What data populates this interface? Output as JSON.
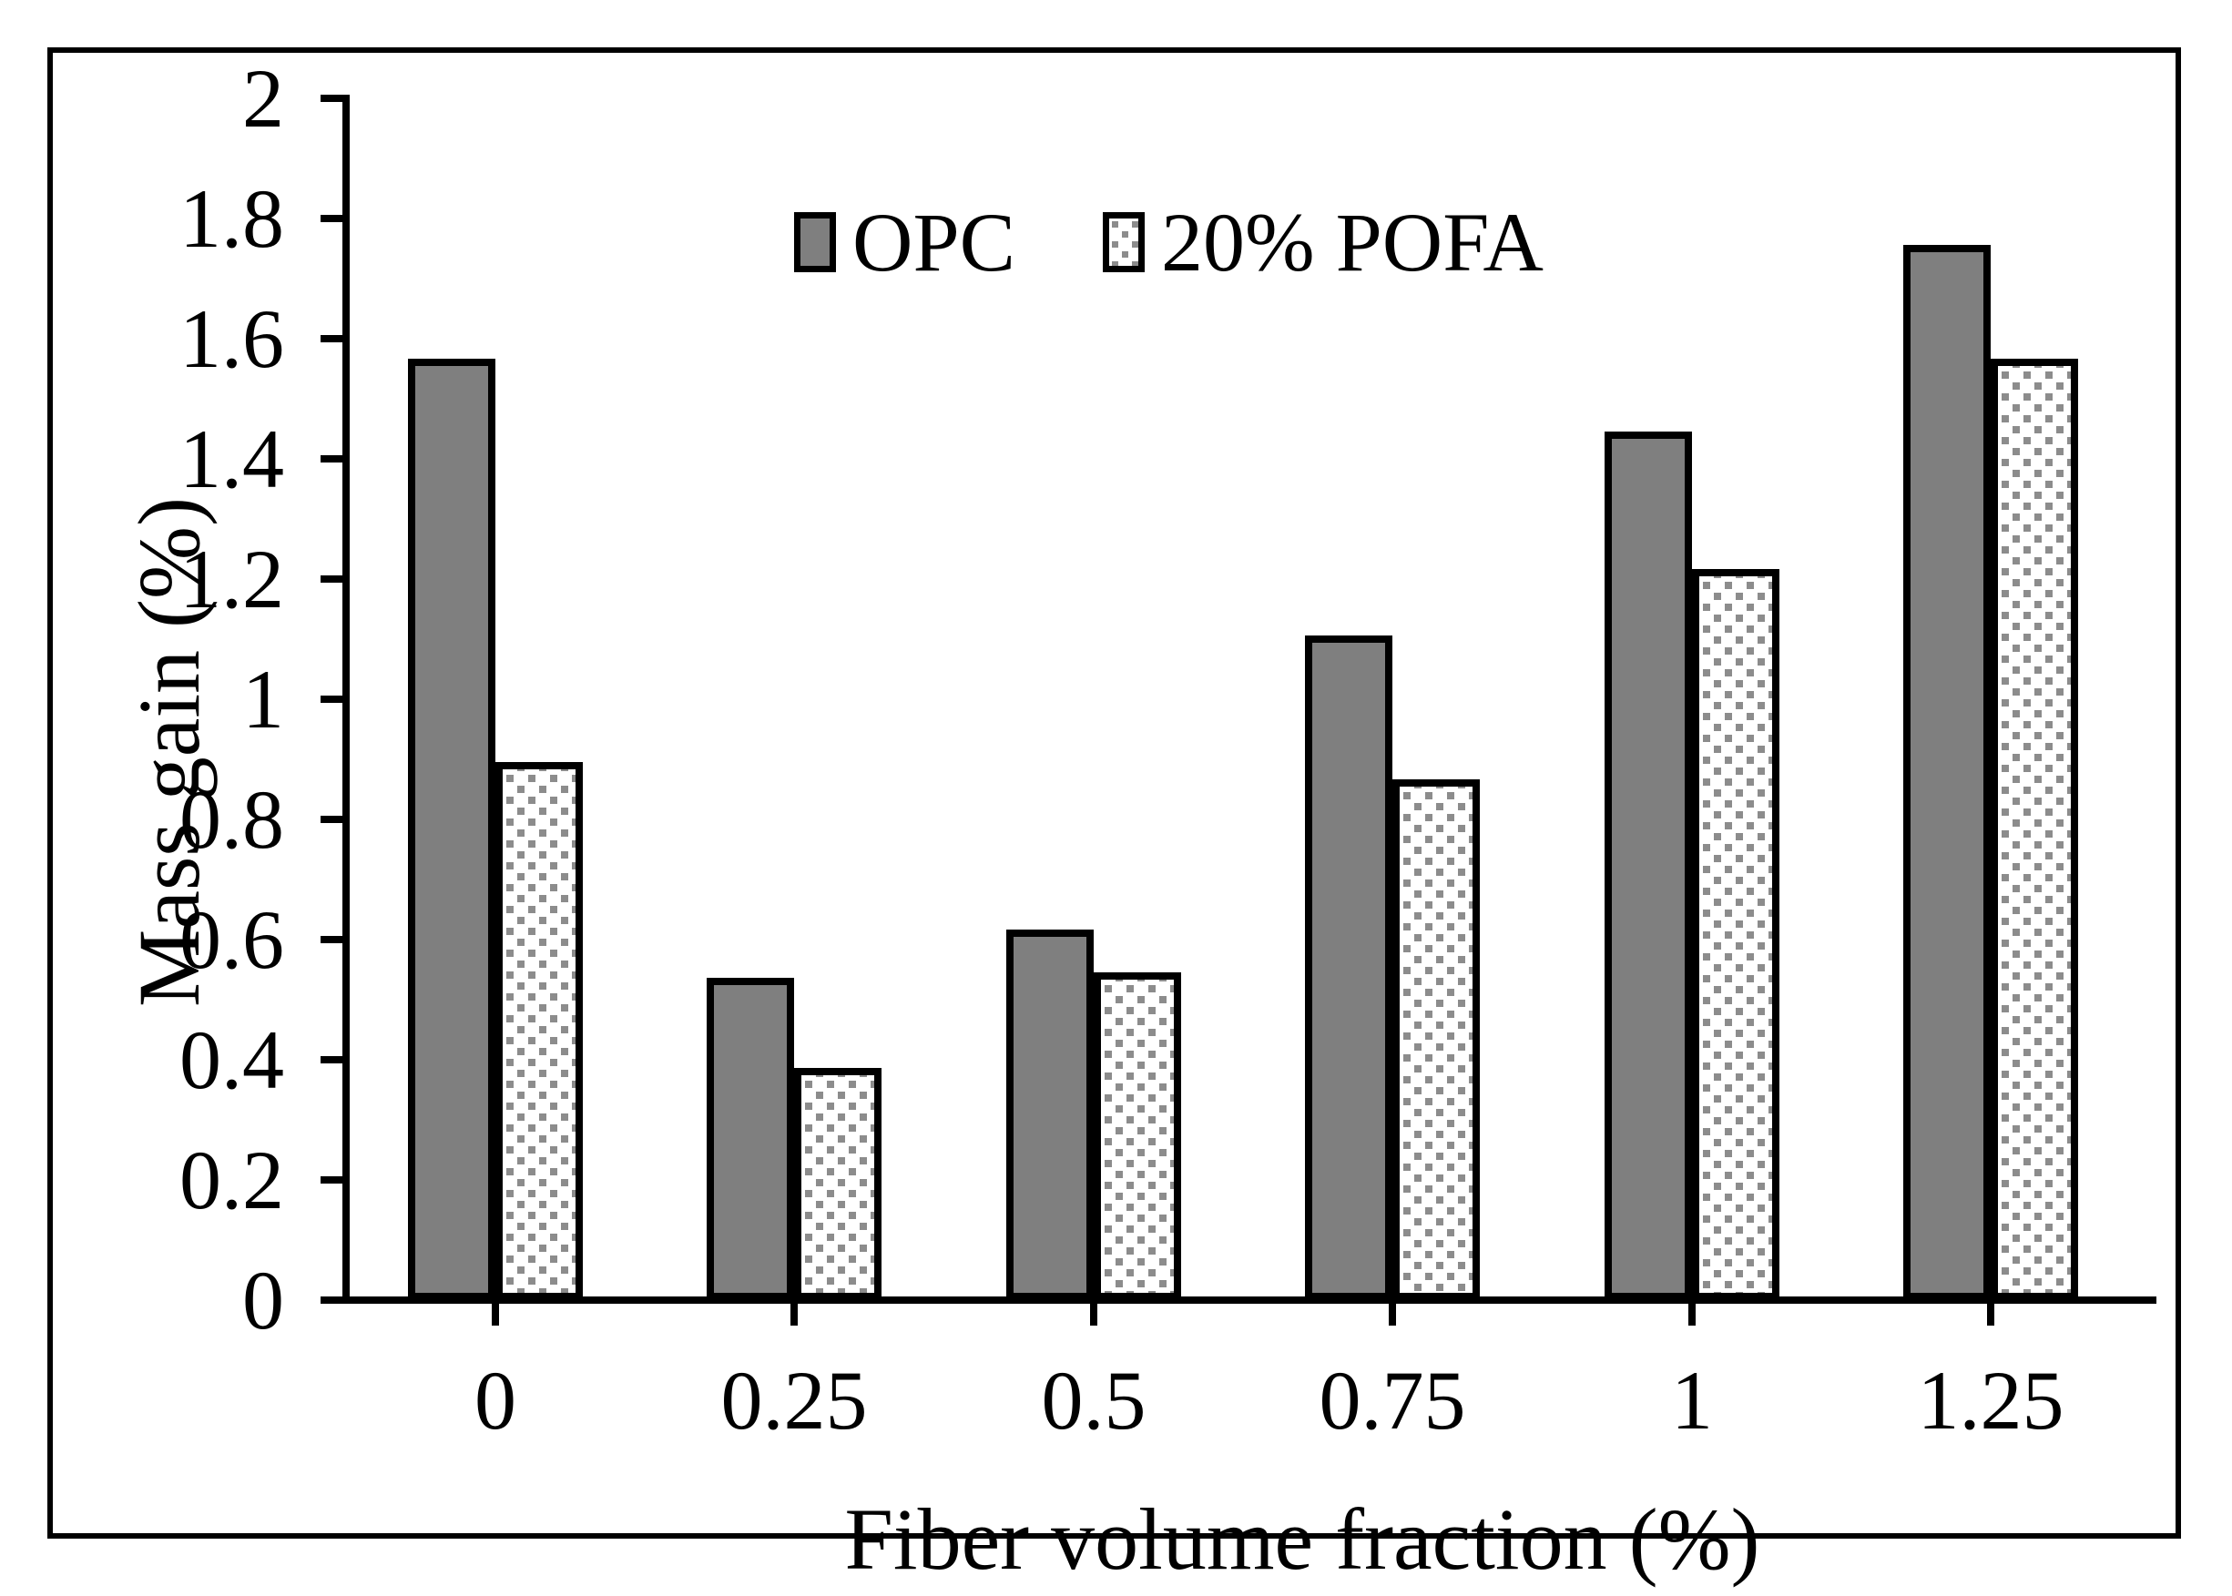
{
  "chart_data": {
    "type": "bar",
    "categories": [
      "0",
      "0.25",
      "0.5",
      "0.75",
      "1",
      "1.25"
    ],
    "series": [
      {
        "name": "OPC",
        "pattern": "solid",
        "values": [
          1.56,
          0.53,
          0.61,
          1.1,
          1.44,
          1.75
        ]
      },
      {
        "name": "20% POFA",
        "pattern": "dots",
        "values": [
          0.89,
          0.38,
          0.54,
          0.86,
          1.21,
          1.56
        ]
      }
    ],
    "xlabel": "Fiber volume fraction (%)",
    "ylabel": "Mass gain (%)",
    "ylim": [
      0,
      2
    ],
    "ytick_step": 0.2,
    "ytick_labels": [
      "0",
      "0.2",
      "0.4",
      "0.6",
      "0.8",
      "1",
      "1.2",
      "1.4",
      "1.6",
      "1.8",
      "2"
    ],
    "grid": false,
    "legend_position": "top-center",
    "colors": {
      "opc_fill": "#7f7f7f",
      "pofa_dot": "#8c8c8c",
      "pofa_background": "#ffffff",
      "axis": "#000000",
      "frame": "#000000"
    }
  }
}
